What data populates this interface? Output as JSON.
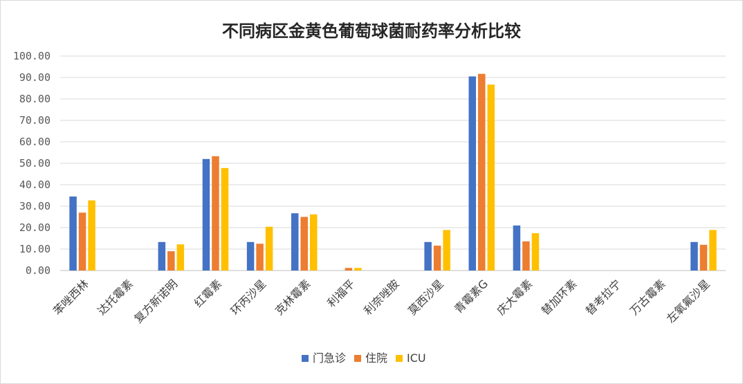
{
  "chart_data": {
    "type": "bar",
    "title": "不同病区金黄色葡萄球菌耐药率分析比较",
    "categories": [
      "苯唑西林",
      "达托霉素",
      "复方新诺明",
      "红霉素",
      "环丙沙星",
      "克林霉素",
      "利福平",
      "利奈唑胺",
      "莫西沙星",
      "青霉素G",
      "庆大霉素",
      "替加环素",
      "替考拉宁",
      "万古霉素",
      "左氧氟沙星"
    ],
    "series": [
      {
        "name": "门急诊",
        "color": "#4472C4",
        "values": [
          34.5,
          0,
          13.3,
          52.0,
          13.3,
          26.7,
          0,
          0,
          13.3,
          90.5,
          21.0,
          0,
          0,
          0,
          13.3
        ]
      },
      {
        "name": "住院",
        "color": "#ED7D31",
        "values": [
          27.0,
          0,
          9.0,
          53.3,
          12.5,
          25.0,
          1.2,
          0,
          11.6,
          91.7,
          13.6,
          0,
          0,
          0,
          12.0
        ]
      },
      {
        "name": "ICU",
        "color": "#FFC000",
        "values": [
          32.7,
          0,
          12.2,
          47.8,
          20.4,
          26.2,
          1.2,
          0,
          18.9,
          86.7,
          17.4,
          0,
          0,
          0,
          18.9
        ]
      }
    ],
    "ylim": [
      0,
      100
    ],
    "yticks": [
      "0.00",
      "10.00",
      "20.00",
      "30.00",
      "40.00",
      "50.00",
      "60.00",
      "70.00",
      "80.00",
      "90.00",
      "100.00"
    ],
    "grid": true,
    "legend": "bottom"
  }
}
